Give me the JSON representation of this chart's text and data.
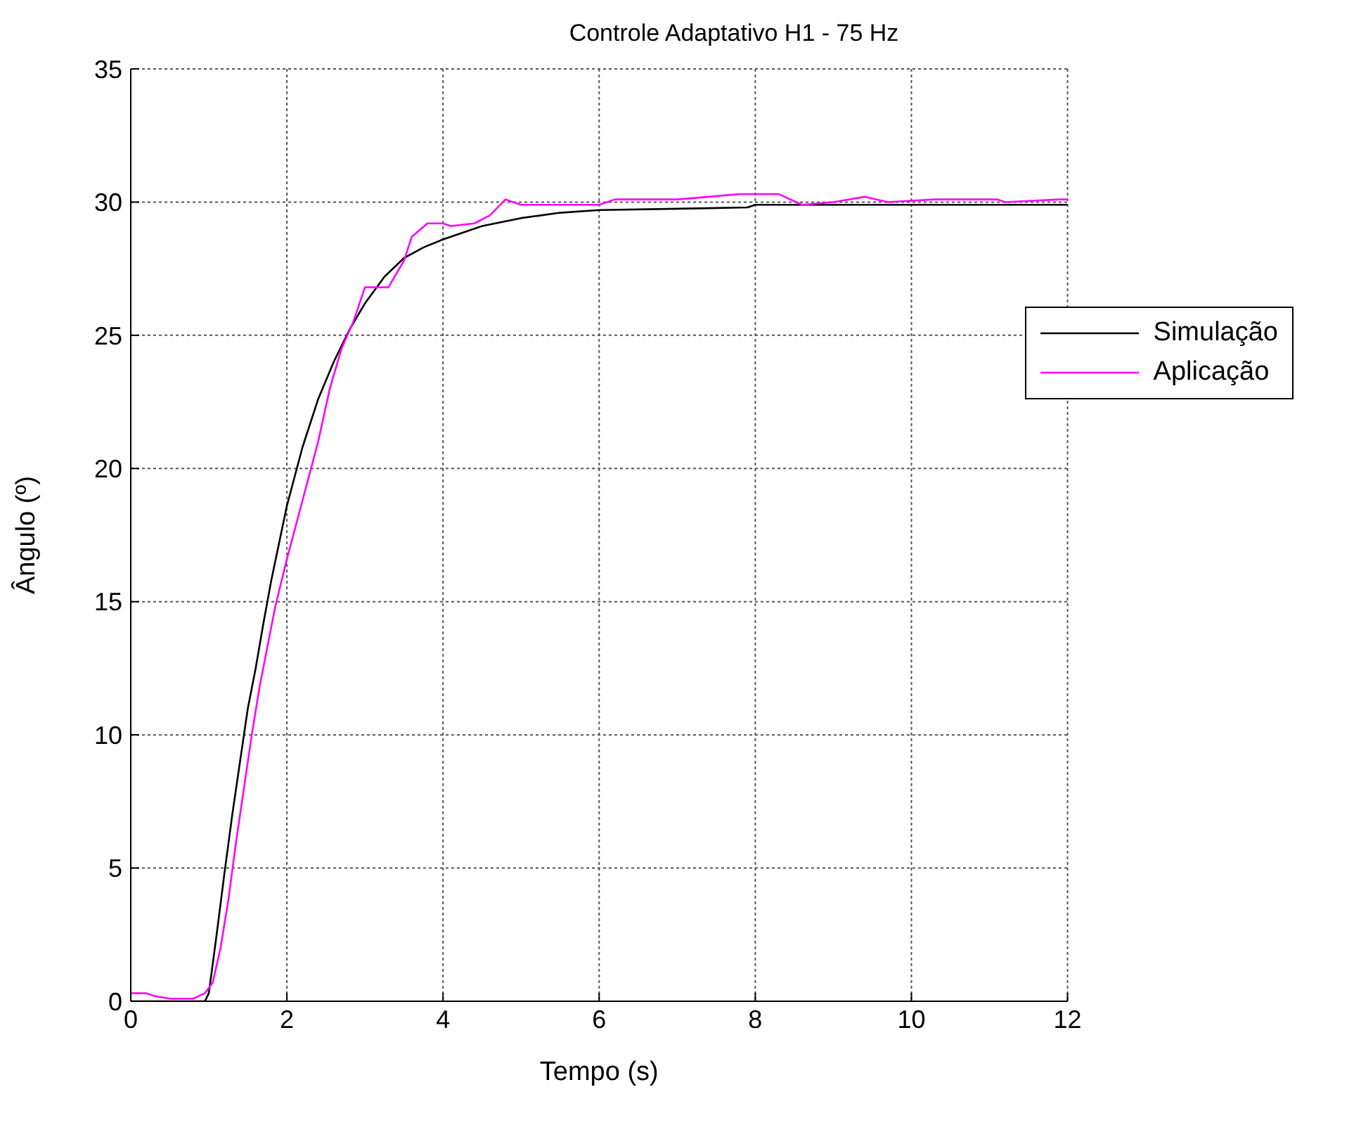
{
  "chart_data": {
    "type": "line",
    "title": "Controle Adaptativo H1 - 75 Hz",
    "xlabel": "Tempo (s)",
    "ylabel": "Ângulo (º)",
    "xlim": [
      0,
      12
    ],
    "xticks": [
      0,
      2,
      4,
      6,
      8,
      10,
      12
    ],
    "ylim": [
      0,
      35
    ],
    "yticks": [
      0,
      5,
      10,
      15,
      20,
      25,
      30,
      35
    ],
    "grid": true,
    "legend": "right",
    "line_style": "solid",
    "marker": "none",
    "series": [
      {
        "name": "Simulação",
        "color": "#000000",
        "x": [
          0,
          0.95,
          1.0,
          1.1,
          1.2,
          1.3,
          1.4,
          1.5,
          1.6,
          1.7,
          1.8,
          1.9,
          2.0,
          2.2,
          2.4,
          2.6,
          2.8,
          3.0,
          3.25,
          3.5,
          3.75,
          4.0,
          4.5,
          5.0,
          5.5,
          6.0,
          7.0,
          7.9,
          8.0,
          12
        ],
        "values": [
          0,
          0,
          0.3,
          2.5,
          4.8,
          7,
          9,
          11,
          12.5,
          14.2,
          15.8,
          17.2,
          18.6,
          20.8,
          22.6,
          24,
          25.2,
          26.2,
          27.2,
          27.9,
          28.3,
          28.6,
          29.1,
          29.4,
          29.6,
          29.7,
          29.75,
          29.8,
          29.9,
          29.9
        ]
      },
      {
        "name": "Aplicação",
        "color": "#ff00ff",
        "x": [
          0,
          0.2,
          0.3,
          0.5,
          0.8,
          0.95,
          1.05,
          1.15,
          1.25,
          1.35,
          1.45,
          1.55,
          1.65,
          1.75,
          1.85,
          2.0,
          2.2,
          2.4,
          2.55,
          2.7,
          2.85,
          3.0,
          3.3,
          3.5,
          3.6,
          3.8,
          4.0,
          4.1,
          4.4,
          4.6,
          4.8,
          5.0,
          5.5,
          6.0,
          6.2,
          7.0,
          7.4,
          7.8,
          8.3,
          8.6,
          9.0,
          9.4,
          9.7,
          10.3,
          11.1,
          11.2,
          11.9,
          12
        ],
        "values": [
          0.3,
          0.3,
          0.2,
          0.1,
          0.1,
          0.3,
          0.7,
          2,
          3.8,
          6,
          8,
          10,
          11.8,
          13.3,
          14.8,
          16.6,
          18.8,
          21,
          23,
          24.5,
          25.5,
          26.8,
          26.8,
          27.8,
          28.7,
          29.2,
          29.2,
          29.1,
          29.2,
          29.5,
          30.1,
          29.9,
          29.9,
          29.9,
          30.1,
          30.1,
          30.2,
          30.3,
          30.3,
          29.9,
          30.0,
          30.2,
          30.0,
          30.1,
          30.1,
          30.0,
          30.1,
          30.1
        ]
      }
    ]
  }
}
